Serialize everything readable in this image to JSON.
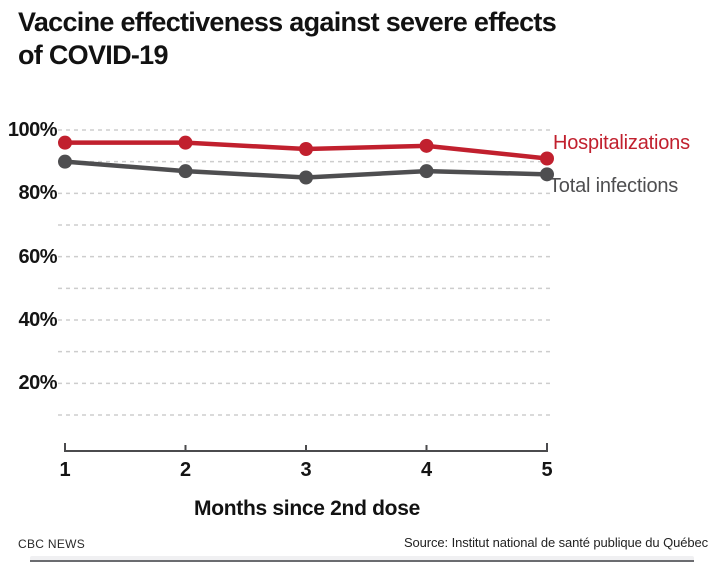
{
  "title": "Vaccine effectiveness against severe effects\nof COVID-19",
  "chart_data": {
    "type": "line",
    "x": [
      1,
      2,
      3,
      4,
      5
    ],
    "x_tick_labels": [
      "1",
      "2",
      "3",
      "4",
      "5"
    ],
    "xlabel": "Months since 2nd dose",
    "y_ticks": [
      100,
      80,
      60,
      40,
      20
    ],
    "y_tick_labels": [
      "100%",
      "80%",
      "60%",
      "40%",
      "20%"
    ],
    "ylim": [
      0,
      100
    ],
    "y_unit": "%",
    "gridlines": "dashed horizontal every 10%",
    "legend_position": "right of last data points",
    "series": [
      {
        "name": "Hospitalizations",
        "color": "#c1202e",
        "values": [
          96,
          96,
          94,
          95,
          91
        ]
      },
      {
        "name": "Total infections",
        "color": "#4e4e50",
        "values": [
          90,
          87,
          85,
          87,
          86
        ]
      }
    ],
    "colors": {
      "gridline": "#cdcdcd",
      "axis": "#4b4b4d",
      "text": "#141414"
    }
  },
  "footer": {
    "brand": "CBC NEWS",
    "source": "Source: Institut national de santé publique du Québec"
  }
}
